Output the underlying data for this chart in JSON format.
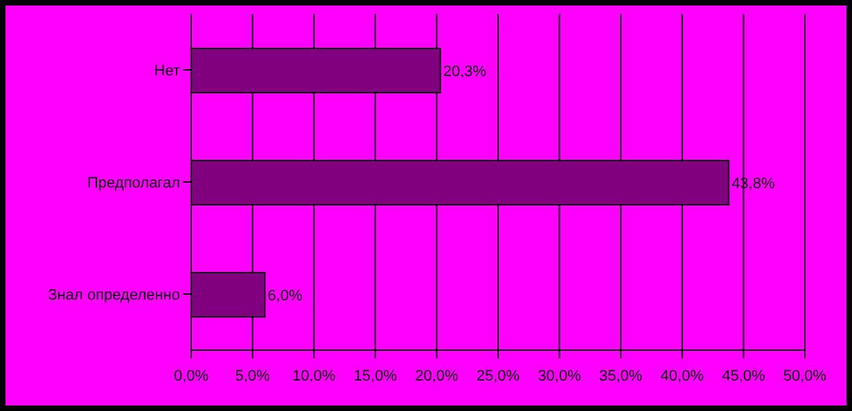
{
  "chart_data": {
    "type": "bar",
    "orientation": "horizontal",
    "categories": [
      "Нет",
      "Предполагал",
      "Знал определенно"
    ],
    "values": [
      20.3,
      43.8,
      6.0
    ],
    "value_labels": [
      "20,3%",
      "43,8%",
      "6,0%"
    ],
    "color": "#800080",
    "xlim": [
      0,
      50
    ],
    "xticks": [
      {
        "value": 0,
        "label": "0,0%"
      },
      {
        "value": 5,
        "label": "5,0%"
      },
      {
        "value": 10,
        "label": "10,0%"
      },
      {
        "value": 15,
        "label": "15,0%"
      },
      {
        "value": 20,
        "label": "20,0%"
      },
      {
        "value": 25,
        "label": "25,0%"
      },
      {
        "value": 30,
        "label": "30,0%"
      },
      {
        "value": 35,
        "label": "35,0%"
      },
      {
        "value": 40,
        "label": "40,0%"
      },
      {
        "value": 45,
        "label": "45,0%"
      },
      {
        "value": 50,
        "label": "50,0%"
      }
    ],
    "grid": "x",
    "legend": false
  }
}
